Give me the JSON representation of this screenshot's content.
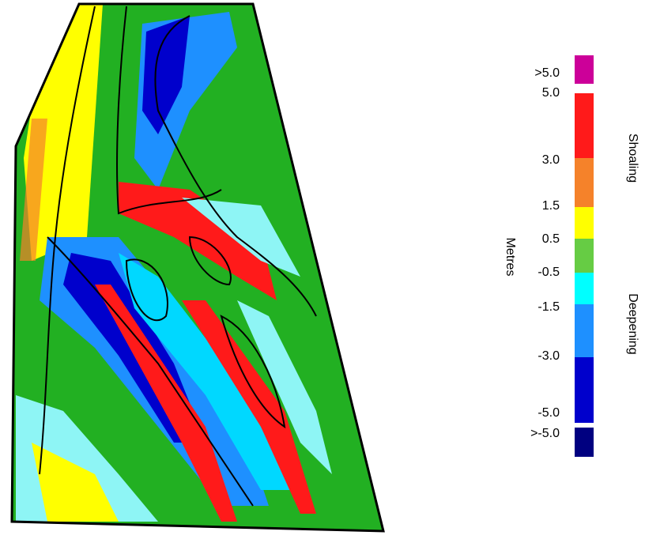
{
  "legend": {
    "title": "Metres",
    "upper_label": "Shoaling",
    "lower_label": "Deepening",
    "labels": [
      ">5.0",
      "5.0",
      "3.0",
      "1.5",
      "0.5",
      "-0.5",
      "-1.5",
      "-3.0",
      "-5.0",
      ">-5.0"
    ],
    "colors": [
      "#cc0099",
      "#ff1a1a",
      "#f5822a",
      "#ffff00",
      "#66cc44",
      "#00ffff",
      "#1e90ff",
      "#0000cc",
      "#000080"
    ]
  }
}
